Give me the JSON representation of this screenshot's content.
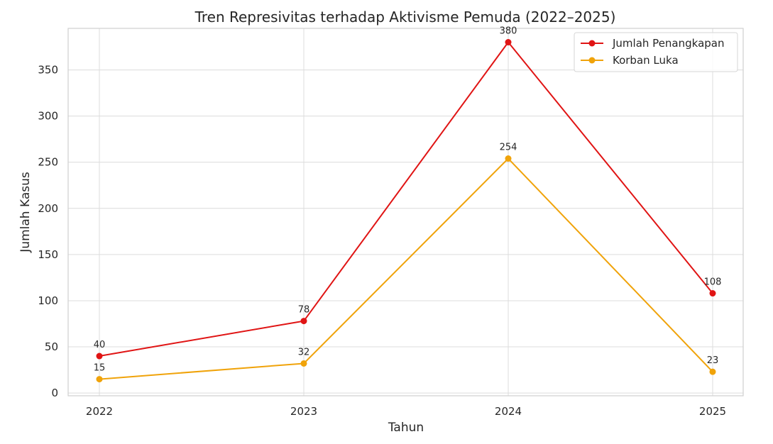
{
  "chart_data": {
    "type": "line",
    "title": "Tren Represivitas terhadap Aktivisme Pemuda (2022–2025)",
    "xlabel": "Tahun",
    "ylabel": "Jumlah Kasus",
    "categories": [
      "2022",
      "2023",
      "2024",
      "2025"
    ],
    "y_ticks": [
      0,
      50,
      100,
      150,
      200,
      250,
      300,
      350
    ],
    "ylim": [
      -3,
      395
    ],
    "grid": true,
    "legend_position": "top-right",
    "series": [
      {
        "name": "Jumlah Penangkapan",
        "values": [
          40,
          78,
          380,
          108
        ],
        "color": "#e01414"
      },
      {
        "name": "Korban Luka",
        "values": [
          15,
          32,
          254,
          23
        ],
        "color": "#f0a30a"
      }
    ]
  }
}
